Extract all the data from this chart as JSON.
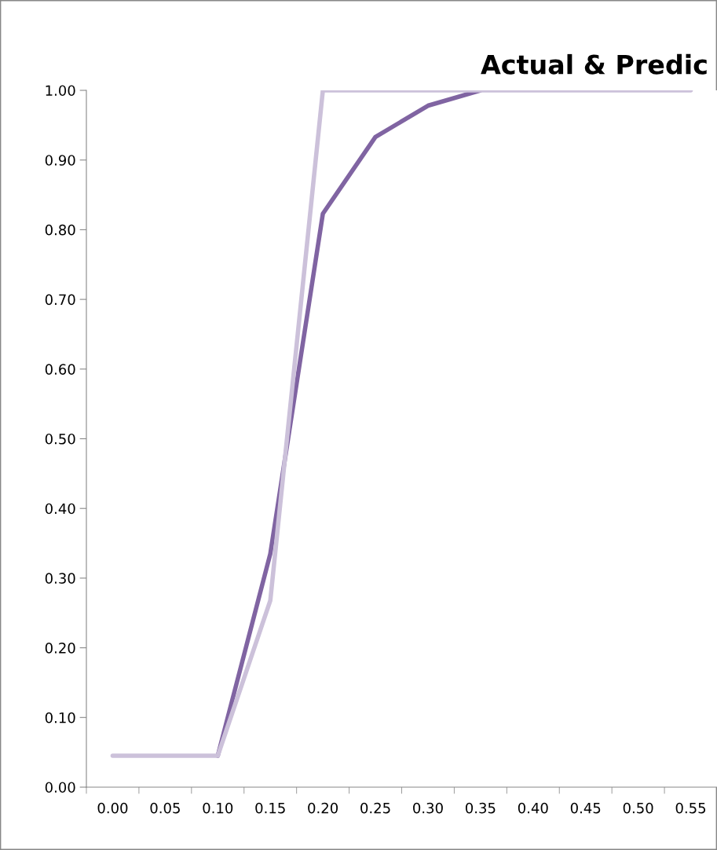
{
  "chart_data": {
    "type": "line",
    "title": "Actual & Predic",
    "categories": [
      "0.00",
      "0.05",
      "0.10",
      "0.15",
      "0.20",
      "0.25",
      "0.30",
      "0.35",
      "0.40",
      "0.45",
      "0.50",
      "0.55"
    ],
    "series": [
      {
        "color": "#8064a2",
        "values": [
          null,
          null,
          0.045,
          0.335,
          0.823,
          0.933,
          0.978,
          1.0,
          null,
          null,
          null,
          null
        ]
      },
      {
        "color": "#ccc1da",
        "values": [
          0.045,
          0.045,
          0.045,
          0.268,
          1.0,
          1.0,
          1.0,
          1.0,
          1.0,
          1.0,
          1.0,
          1.0
        ]
      }
    ],
    "ylim": [
      0,
      1
    ],
    "yticks": [
      {
        "value": 0,
        "label": "0.00"
      },
      {
        "value": 0.1,
        "label": "0.10"
      },
      {
        "value": 0.2,
        "label": "0.20"
      },
      {
        "value": 0.3,
        "label": "0.30"
      },
      {
        "value": 0.4,
        "label": "0.40"
      },
      {
        "value": 0.5,
        "label": "0.50"
      },
      {
        "value": 0.6,
        "label": "0.60"
      },
      {
        "value": 0.7,
        "label": "0.70"
      },
      {
        "value": 0.8,
        "label": "0.80"
      },
      {
        "value": 0.9,
        "label": "0.90"
      },
      {
        "value": 1,
        "label": "1.00"
      }
    ],
    "grid": false,
    "legend": false,
    "marker": "none",
    "line_style": "solid"
  }
}
